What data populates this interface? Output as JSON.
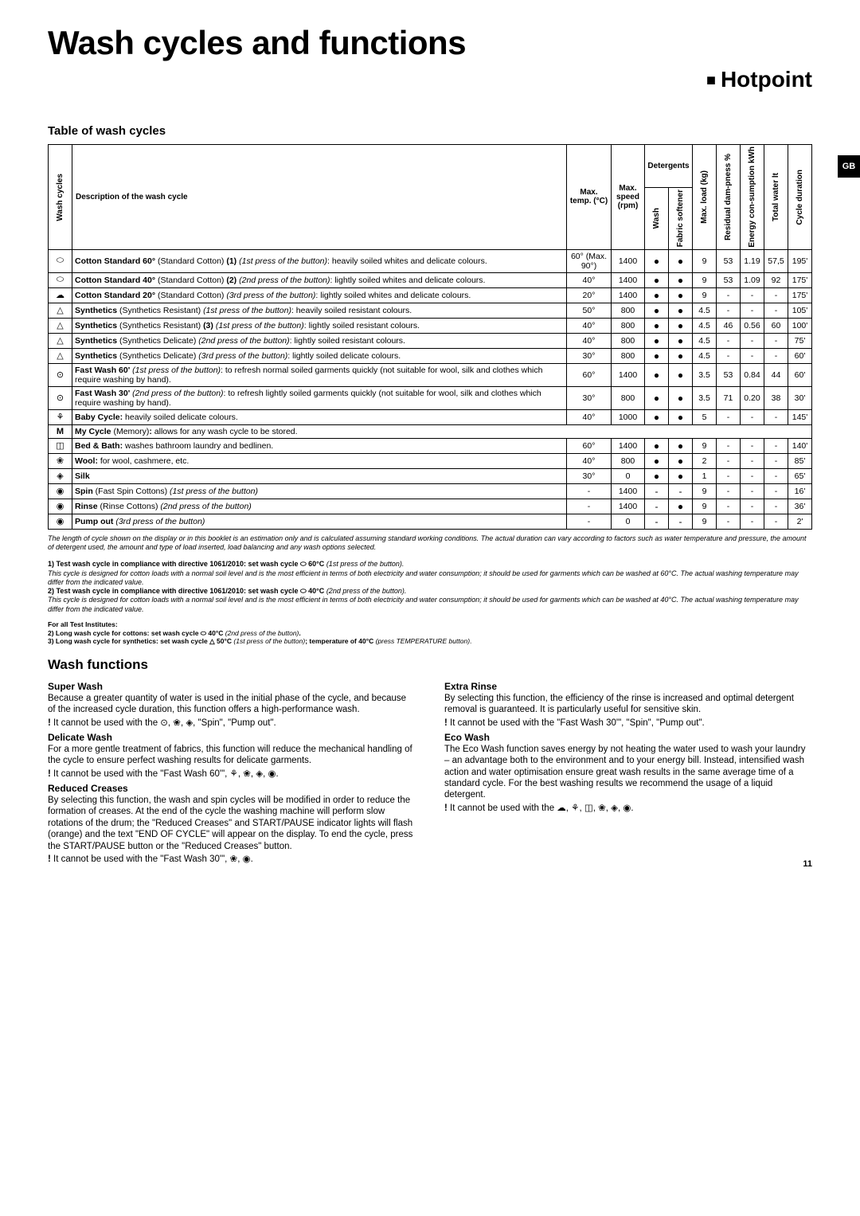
{
  "title": "Wash cycles and functions",
  "brand": "Hotpoint",
  "side_tab": "GB",
  "table_heading": "Table of wash cycles",
  "columns": {
    "wash_cycles": "Wash cycles",
    "description": "Description of the wash cycle",
    "max_temp": "Max. temp. (°C)",
    "max_speed": "Max. speed (rpm)",
    "detergents": "Detergents",
    "wash": "Wash",
    "softener": "Fabric softener",
    "max_load": "Max. load (kg)",
    "residual": "Residual dam-pness %",
    "energy": "Energy con-sumption kWh",
    "water": "Total water lt",
    "duration": "Cycle duration"
  },
  "rows": [
    {
      "icon": "⬭",
      "desc": "<b>Cotton Standard 60°</b> (Standard Cotton) <b>(1)</b> <i>(1st press of the button)</i>: heavily soiled whites and delicate colours.",
      "temp": "60° (Max. 90°)",
      "speed": "1400",
      "wash": "●",
      "soft": "●",
      "load": "9",
      "res": "53",
      "en": "1.19",
      "wat": "57,5",
      "dur": "195'"
    },
    {
      "icon": "⬭",
      "desc": "<b>Cotton Standard 40°</b> (Standard Cotton) <b>(2)</b> <i>(2nd press of the button)</i>: lightly soiled whites and delicate colours.",
      "temp": "40°",
      "speed": "1400",
      "wash": "●",
      "soft": "●",
      "load": "9",
      "res": "53",
      "en": "1.09",
      "wat": "92",
      "dur": "175'"
    },
    {
      "icon": "☁",
      "desc": "<b>Cotton Standard 20°</b> (Standard Cotton) <i>(3rd press of the button)</i>: lightly soiled whites and delicate colours.",
      "temp": "20°",
      "speed": "1400",
      "wash": "●",
      "soft": "●",
      "load": "9",
      "res": "-",
      "en": "-",
      "wat": "-",
      "dur": "175'"
    },
    {
      "icon": "△",
      "desc": "<b>Synthetics</b> (Synthetics Resistant) <i>(1st press of the button)</i>: heavily soiled resistant colours.",
      "temp": "50°",
      "speed": "800",
      "wash": "●",
      "soft": "●",
      "load": "4.5",
      "res": "-",
      "en": "-",
      "wat": "-",
      "dur": "105'"
    },
    {
      "icon": "△",
      "desc": "<b>Synthetics</b> (Synthetics Resistant) <b>(3)</b> <i>(1st press of the button)</i>: lightly soiled resistant colours.",
      "temp": "40°",
      "speed": "800",
      "wash": "●",
      "soft": "●",
      "load": "4.5",
      "res": "46",
      "en": "0.56",
      "wat": "60",
      "dur": "100'"
    },
    {
      "icon": "△",
      "desc": "<b>Synthetics</b> (Synthetics Delicate) <i>(2nd press of the button)</i>: lightly soiled resistant colours.",
      "temp": "40°",
      "speed": "800",
      "wash": "●",
      "soft": "●",
      "load": "4.5",
      "res": "-",
      "en": "-",
      "wat": "-",
      "dur": "75'"
    },
    {
      "icon": "△",
      "desc": "<b>Synthetics</b> (Synthetics Delicate) <i>(3rd press of the button)</i>: lightly soiled delicate colours.",
      "temp": "30°",
      "speed": "800",
      "wash": "●",
      "soft": "●",
      "load": "4.5",
      "res": "-",
      "en": "-",
      "wat": "-",
      "dur": "60'"
    },
    {
      "icon": "⊙",
      "desc": "<b>Fast Wash 60'</b> <i>(1st press of the button)</i>: to refresh normal soiled garments quickly (not suitable for wool, silk and clothes which require washing by hand).",
      "temp": "60°",
      "speed": "1400",
      "wash": "●",
      "soft": "●",
      "load": "3.5",
      "res": "53",
      "en": "0.84",
      "wat": "44",
      "dur": "60'"
    },
    {
      "icon": "⊙",
      "desc": "<b>Fast Wash 30'</b> <i>(2nd press of the button)</i>: to refresh lightly soiled garments quickly (not suitable for wool, silk and clothes which require washing by hand).",
      "temp": "30°",
      "speed": "800",
      "wash": "●",
      "soft": "●",
      "load": "3.5",
      "res": "71",
      "en": "0.20",
      "wat": "38",
      "dur": "30'"
    },
    {
      "icon": "⚘",
      "desc": "<b>Baby Cycle:</b> heavily soiled delicate colours.",
      "temp": "40°",
      "speed": "1000",
      "wash": "●",
      "soft": "●",
      "load": "5",
      "res": "-",
      "en": "-",
      "wat": "-",
      "dur": "145'"
    },
    {
      "icon": "M",
      "full": true,
      "desc": "<b>My Cycle</b> (Memory)<b>:</b> allows for any wash cycle to be stored."
    },
    {
      "icon": "◫",
      "desc": "<b>Bed & Bath:</b> washes bathroom laundry and bedlinen.",
      "temp": "60°",
      "speed": "1400",
      "wash": "●",
      "soft": "●",
      "load": "9",
      "res": "-",
      "en": "-",
      "wat": "-",
      "dur": "140'"
    },
    {
      "icon": "❀",
      "desc": "<b>Wool:</b> for wool, cashmere, etc.",
      "temp": "40°",
      "speed": "800",
      "wash": "●",
      "soft": "●",
      "load": "2",
      "res": "-",
      "en": "-",
      "wat": "-",
      "dur": "85'"
    },
    {
      "icon": "◈",
      "desc": "<b>Silk</b>",
      "temp": "30°",
      "speed": "0",
      "wash": "●",
      "soft": "●",
      "load": "1",
      "res": "-",
      "en": "-",
      "wat": "-",
      "dur": "65'"
    },
    {
      "icon": "◉",
      "desc": "<b>Spin</b> (Fast Spin Cottons) <i>(1st press of the button)</i>",
      "temp": "-",
      "speed": "1400",
      "wash": "-",
      "soft": "-",
      "load": "9",
      "res": "-",
      "en": "-",
      "wat": "-",
      "dur": "16'"
    },
    {
      "icon": "◉",
      "desc": "<b>Rinse</b> (Rinse Cottons) <i>(2nd press of the button)</i>",
      "temp": "-",
      "speed": "1400",
      "wash": "-",
      "soft": "●",
      "load": "9",
      "res": "-",
      "en": "-",
      "wat": "-",
      "dur": "36'"
    },
    {
      "icon": "◉",
      "desc": "<b>Pump out</b> <i>(3rd press of the button)</i>",
      "temp": "-",
      "speed": "0",
      "wash": "-",
      "soft": "-",
      "load": "9",
      "res": "-",
      "en": "-",
      "wat": "-",
      "dur": "2'"
    }
  ],
  "table_footnote": "The length of cycle shown on the display or in this booklet is an estimation only and is calculated assuming standard working conditions. The actual duration can vary according to factors such as water temperature and pressure, the amount of detergent used, the amount and type of load inserted, load balancing and any wash options selected.",
  "compliance": "<span class='b'>1) Test wash cycle in compliance with directive 1061/2010: set wash cycle ⬭ 60°C</span> <span class='i'>(1st press of the button).</span><br><span class='i'>This cycle is designed for cotton loads with a normal soil level and is the most efficient in terms of both electricity and water consumption; it should be used for garments which can be washed at 60°C. The actual washing temperature may differ from the indicated value.</span><br><span class='b'>2) Test wash cycle in compliance with directive 1061/2010: set wash cycle ⬭ 40°C</span> <span class='i'>(2nd press of the button).</span><br><span class='i'>This cycle is designed for cotton loads with a normal soil level and is the most efficient in terms of both electricity and water consumption; it should be used for garments which can be washed at 40°C. The actual washing temperature may differ from the indicated value.</span>",
  "institute": "<span class='b'>For all Test Institutes:</span><br><span class='b'>2) Long wash cycle for cottons: set wash cycle ⬭ 40°C</span> <span class='i'>(2nd press of the button)</span><span class='b'>.</span><br><span class='b'>3) Long wash cycle for synthetics: set wash cycle △ 50°C</span> <span class='i'>(1st press of the button)</span><span class='b'>; temperature of 40°C</span> <span class='i'>(press TEMPERATURE button)</span>.",
  "functions_heading": "Wash functions",
  "functions_left": [
    {
      "title": "Super Wash",
      "body": "Because a greater quantity of water is used in the initial phase of the cycle, and because of the increased cycle duration, this function offers a high-performance wash.",
      "warn": "It cannot be used with the ⊙, ❀, ◈, \"Spin\", \"Pump out\"."
    },
    {
      "title": "Delicate Wash",
      "body": "For a more gentle treatment of fabrics, this function will reduce the mechanical handling of the cycle to ensure perfect washing results for delicate garments.",
      "warn": "It cannot be used with the \"Fast Wash 60'\", ⚘, ❀, ◈, ◉."
    },
    {
      "title": "Reduced Creases",
      "body": "By selecting this function, the wash and spin cycles will be modified in order to reduce the formation of creases. At the end of the cycle the washing machine will perform slow rotations of the drum; the \"Reduced Creases\" and START/PAUSE indicator lights will flash (orange) and the text \"END OF CYCLE\" will appear on the display. To end the cycle, press the START/PAUSE button or the \"Reduced Creases\" button.",
      "warn": "It cannot be used with the \"Fast Wash 30'\", ❀, ◉."
    }
  ],
  "functions_right": [
    {
      "title": "Extra Rinse",
      "body": "By selecting this function, the efficiency of the rinse is increased and optimal detergent removal is guaranteed. It is particularly useful for sensitive skin.",
      "warn": "It cannot be used with the \"Fast Wash 30'\", \"Spin\", \"Pump out\"."
    },
    {
      "title": "Eco Wash",
      "body": "The Eco Wash function saves energy by not heating the water used to wash your laundry – an advantage both to the environment and to your energy bill. Instead, intensified wash action and water optimisation ensure great wash results in the same average time of a standard cycle. For the best washing results we recommend the usage of a liquid detergent.",
      "warn": "It cannot be used with the ☁, ⚘, ◫, ❀, ◈, ◉."
    }
  ],
  "page_number": "11"
}
